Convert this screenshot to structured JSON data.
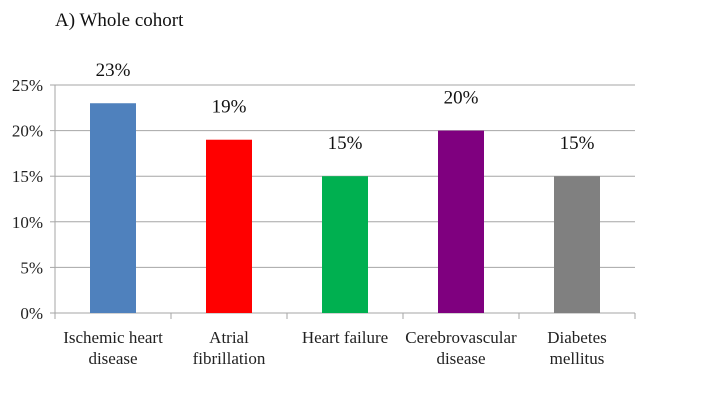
{
  "chart_data": {
    "type": "bar",
    "title": "A) Whole cohort",
    "categories": [
      [
        "Ischemic heart",
        "disease"
      ],
      [
        "Atrial",
        "fibrillation"
      ],
      [
        "Heart failure"
      ],
      [
        "Cerebrovascular",
        "disease"
      ],
      [
        "Diabetes",
        "mellitus"
      ]
    ],
    "values": [
      23,
      19,
      15,
      20,
      15
    ],
    "data_labels": [
      "23%",
      "19%",
      "15%",
      "20%",
      "15%"
    ],
    "bar_colors": [
      "#4f81bd",
      "#ff0000",
      "#00b050",
      "#7f007f",
      "#808080"
    ],
    "ylim": [
      0,
      25
    ],
    "yticks": [
      0,
      5,
      10,
      15,
      20,
      25
    ],
    "ytick_labels": [
      "0%",
      "5%",
      "10%",
      "15%",
      "20%",
      "25%"
    ],
    "xlabel": "",
    "ylabel": "",
    "grid": true,
    "legend": false,
    "gridline_color": "#a6a6a6",
    "axis_color": "#a6a6a6"
  }
}
